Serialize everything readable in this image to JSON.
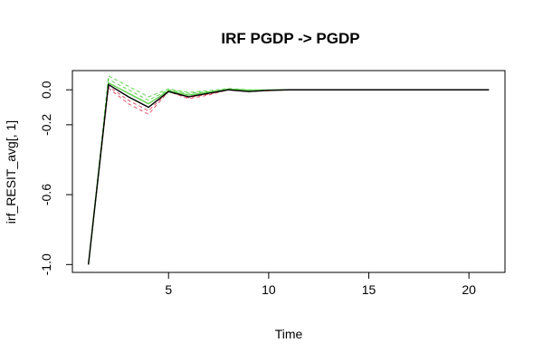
{
  "chart_data": {
    "type": "line",
    "title": "IRF PGDP -> PGDP",
    "xlabel": "Time",
    "ylabel": "irf_RESIT_avg[, 1]",
    "xlim": [
      0.2,
      21.8
    ],
    "ylim": [
      -1.045,
      0.11
    ],
    "xticks": [
      5,
      10,
      15,
      20
    ],
    "xtick_labels": [
      "5",
      "10",
      "15",
      "20"
    ],
    "yticks": [
      -1.0,
      -0.6,
      -0.2,
      0.0
    ],
    "ytick_labels": [
      "-1.0",
      "-0.6",
      "-0.2",
      "0.0"
    ],
    "grid": false,
    "legend": "none",
    "x": [
      1,
      2,
      3,
      4,
      5,
      6,
      7,
      8,
      9,
      10,
      11,
      12,
      13,
      14,
      15,
      16,
      17,
      18,
      19,
      20,
      21
    ],
    "series": [
      {
        "role": "lower",
        "color": "#df536b",
        "dash": true,
        "values": [
          -1.0,
          0.01,
          -0.08,
          -0.14,
          -0.01,
          -0.05,
          -0.03,
          0.0,
          -0.01,
          -0.005,
          0.0,
          0.0,
          0.0,
          0.0,
          0.0,
          0.0,
          0.0,
          0.0,
          0.0,
          0.0,
          0.0
        ]
      },
      {
        "role": "lower",
        "color": "#df536b",
        "dash": true,
        "values": [
          -1.0,
          0.02,
          -0.06,
          -0.12,
          -0.01,
          -0.045,
          -0.025,
          0.0,
          -0.01,
          -0.005,
          0.0,
          0.0,
          0.0,
          0.0,
          0.0,
          0.0,
          0.0,
          0.0,
          0.0,
          0.0,
          0.0
        ]
      },
      {
        "role": "upper",
        "color": "#61d04f",
        "dash": true,
        "values": [
          -1.0,
          0.06,
          0.0,
          -0.06,
          0.0,
          -0.02,
          -0.01,
          0.005,
          0.0,
          0.0,
          0.0,
          0.0,
          0.0,
          0.0,
          0.0,
          0.0,
          0.0,
          0.0,
          0.0,
          0.0,
          0.0
        ]
      },
      {
        "role": "upper",
        "color": "#61d04f",
        "dash": true,
        "values": [
          -1.0,
          0.08,
          0.02,
          -0.04,
          0.005,
          -0.015,
          -0.005,
          0.008,
          0.0,
          0.0,
          0.0,
          0.0,
          0.0,
          0.0,
          0.0,
          0.0,
          0.0,
          0.0,
          0.0,
          0.0,
          0.0
        ]
      },
      {
        "role": "median",
        "color": "#61d04f",
        "dash": false,
        "values": [
          -1.0,
          0.04,
          -0.02,
          -0.08,
          -0.005,
          -0.03,
          -0.015,
          0.003,
          -0.005,
          -0.002,
          0.0,
          0.0,
          0.0,
          0.0,
          0.0,
          0.0,
          0.0,
          0.0,
          0.0,
          0.0,
          0.0
        ]
      },
      {
        "role": "estimate",
        "color": "#000000",
        "dash": false,
        "values": [
          -1.0,
          0.03,
          -0.04,
          -0.1,
          -0.01,
          -0.04,
          -0.02,
          0.0,
          -0.01,
          -0.003,
          0.0,
          0.0,
          0.0,
          0.0,
          0.0,
          0.0,
          0.0,
          0.0,
          0.0,
          0.0,
          0.0
        ]
      }
    ]
  }
}
